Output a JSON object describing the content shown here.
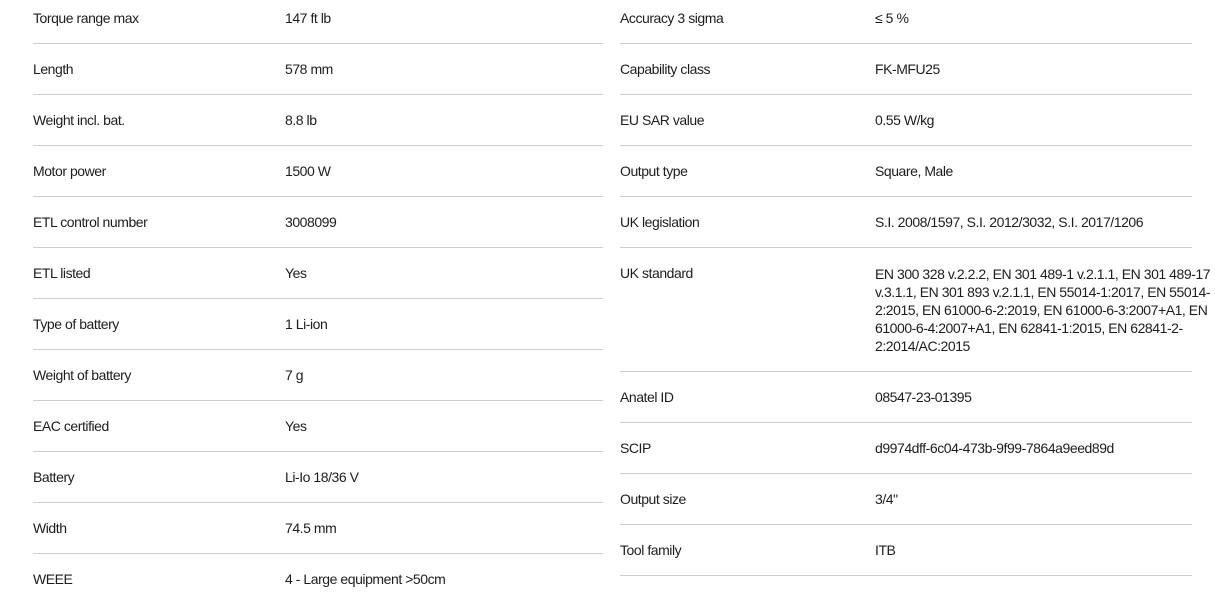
{
  "page": {
    "background": "#ffffff",
    "text_color": "#1d1d1b",
    "divider_color": "#cdcdcd"
  },
  "spec_tables": {
    "left": {
      "rows": [
        {
          "label": "Torque range max",
          "value": "147 ft lb"
        },
        {
          "label": "Length",
          "value": "578 mm"
        },
        {
          "label": "Weight incl. bat.",
          "value": "8.8 lb"
        },
        {
          "label": "Motor power",
          "value": "1500 W"
        },
        {
          "label": "ETL control number",
          "value": "3008099"
        },
        {
          "label": "ETL listed",
          "value": "Yes"
        },
        {
          "label": "Type of battery",
          "value": "1 Li-ion"
        },
        {
          "label": "Weight of battery",
          "value": "7 g"
        },
        {
          "label": "EAC certified",
          "value": "Yes"
        },
        {
          "label": "Battery",
          "value": "Li-Io 18/36 V"
        },
        {
          "label": "Width",
          "value": "74.5 mm"
        },
        {
          "label": "WEEE",
          "value": "4 - Large equipment >50cm"
        }
      ]
    },
    "right": {
      "rows": [
        {
          "label": "Accuracy 3 sigma",
          "value": "≤ 5 %"
        },
        {
          "label": "Capability class",
          "value": "FK-MFU25"
        },
        {
          "label": "EU SAR value",
          "value": "0.55 W/kg"
        },
        {
          "label": "Output type",
          "value": "Square, Male"
        },
        {
          "label": "UK legislation",
          "value": "S.I. 2008/1597, S.I. 2012/3032, S.I. 2017/1206"
        },
        {
          "label": "UK standard",
          "value": "EN 300 328 v.2.2.2, EN 301 489-1 v.2.1.1, EN 301 489-17 v.3.1.1, EN 301 893 v.2.1.1, EN 55014-1:2017, EN 55014-2:2015, EN 61000-6-2:2019, EN 61000-6-3:2007+A1, EN 61000-6-4:2007+A1, EN 62841-1:2015, EN 62841-2-2:2014/AC:2015"
        },
        {
          "label": "Anatel ID",
          "value": "08547-23-01395"
        },
        {
          "label": "SCIP",
          "value": "d9974dff-6c04-473b-9f99-7864a9eed89d"
        },
        {
          "label": "Output size",
          "value": "3/4\""
        },
        {
          "label": "Tool family",
          "value": "ITB"
        }
      ]
    }
  }
}
